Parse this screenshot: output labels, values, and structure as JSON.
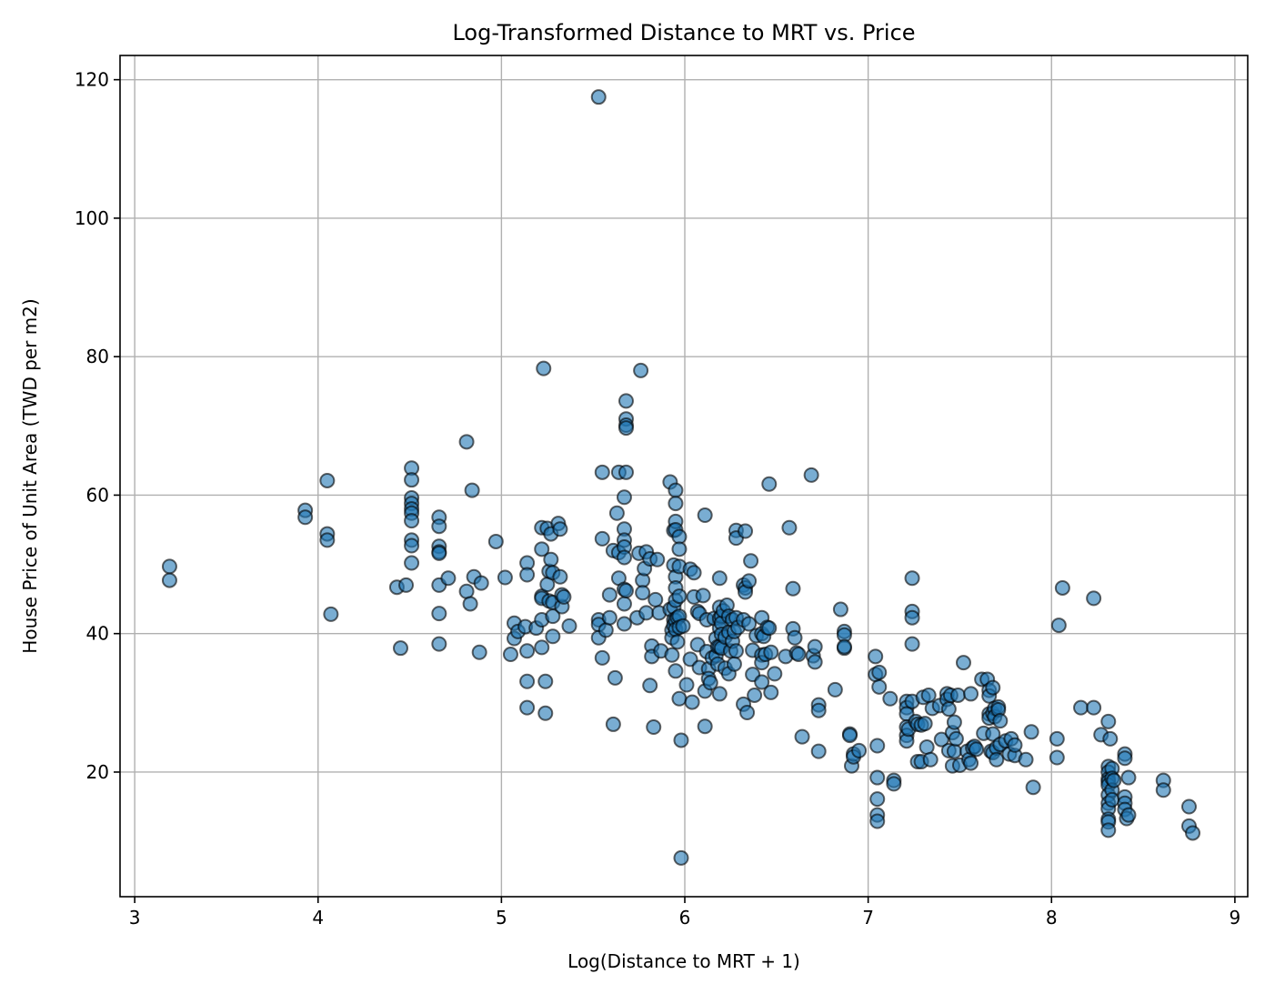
{
  "chart_data": {
    "type": "scatter",
    "title": "Log-Transformed Distance to MRT vs. Price",
    "xlabel": "Log(Distance to MRT + 1)",
    "ylabel": "House Price of Unit Area (TWD per m2)",
    "xlim": [
      2.92,
      9.07
    ],
    "ylim": [
      2.0,
      123.5
    ],
    "xticks": [
      3,
      4,
      5,
      6,
      7,
      8,
      9
    ],
    "yticks": [
      20,
      40,
      60,
      80,
      100,
      120
    ],
    "grid": true,
    "point_color": "#1f77b4",
    "points": [
      [
        3.19,
        49.7
      ],
      [
        3.19,
        47.7
      ],
      [
        3.93,
        57.8
      ],
      [
        3.93,
        56.8
      ],
      [
        4.05,
        62.1
      ],
      [
        4.05,
        54.4
      ],
      [
        4.05,
        53.5
      ],
      [
        4.07,
        42.8
      ],
      [
        4.43,
        46.7
      ],
      [
        4.45,
        37.9
      ],
      [
        4.48,
        47.0
      ],
      [
        4.51,
        63.9
      ],
      [
        4.51,
        62.2
      ],
      [
        4.51,
        59.6
      ],
      [
        4.51,
        58.8
      ],
      [
        4.51,
        58.0
      ],
      [
        4.51,
        57.4
      ],
      [
        4.51,
        56.3
      ],
      [
        4.51,
        53.5
      ],
      [
        4.51,
        52.7
      ],
      [
        4.51,
        50.2
      ],
      [
        4.66,
        56.8
      ],
      [
        4.66,
        55.5
      ],
      [
        4.66,
        52.6
      ],
      [
        4.66,
        51.8
      ],
      [
        4.66,
        51.6
      ],
      [
        4.66,
        47.0
      ],
      [
        4.66,
        42.9
      ],
      [
        4.66,
        38.5
      ],
      [
        4.71,
        48.0
      ],
      [
        4.81,
        67.7
      ],
      [
        4.81,
        46.1
      ],
      [
        4.83,
        44.3
      ],
      [
        4.84,
        60.7
      ],
      [
        4.85,
        48.2
      ],
      [
        4.88,
        37.3
      ],
      [
        4.89,
        47.3
      ],
      [
        4.97,
        53.3
      ],
      [
        5.02,
        48.1
      ],
      [
        5.05,
        37.0
      ],
      [
        5.07,
        41.5
      ],
      [
        5.07,
        39.3
      ],
      [
        5.09,
        40.3
      ],
      [
        5.13,
        41.0
      ],
      [
        5.14,
        50.2
      ],
      [
        5.14,
        48.5
      ],
      [
        5.14,
        37.5
      ],
      [
        5.14,
        33.1
      ],
      [
        5.14,
        29.3
      ],
      [
        5.19,
        40.8
      ],
      [
        5.22,
        55.3
      ],
      [
        5.22,
        52.2
      ],
      [
        5.22,
        45.4
      ],
      [
        5.22,
        45.1
      ],
      [
        5.22,
        42.0
      ],
      [
        5.22,
        38.0
      ],
      [
        5.23,
        78.3
      ],
      [
        5.24,
        33.1
      ],
      [
        5.24,
        28.5
      ],
      [
        5.25,
        55.2
      ],
      [
        5.25,
        47.1
      ],
      [
        5.26,
        49.0
      ],
      [
        5.26,
        44.7
      ],
      [
        5.27,
        54.4
      ],
      [
        5.27,
        50.7
      ],
      [
        5.28,
        48.8
      ],
      [
        5.28,
        44.5
      ],
      [
        5.28,
        42.5
      ],
      [
        5.28,
        39.6
      ],
      [
        5.31,
        55.9
      ],
      [
        5.32,
        55.1
      ],
      [
        5.32,
        48.2
      ],
      [
        5.33,
        43.9
      ],
      [
        5.33,
        45.6
      ],
      [
        5.34,
        45.3
      ],
      [
        5.37,
        41.1
      ],
      [
        5.53,
        117.5
      ],
      [
        5.53,
        42.0
      ],
      [
        5.53,
        41.3
      ],
      [
        5.53,
        39.4
      ],
      [
        5.55,
        63.3
      ],
      [
        5.55,
        53.7
      ],
      [
        5.55,
        36.5
      ],
      [
        5.57,
        40.5
      ],
      [
        5.59,
        45.6
      ],
      [
        5.59,
        42.3
      ],
      [
        5.61,
        52.0
      ],
      [
        5.61,
        26.9
      ],
      [
        5.62,
        33.6
      ],
      [
        5.63,
        57.4
      ],
      [
        5.64,
        63.3
      ],
      [
        5.64,
        48.0
      ],
      [
        5.64,
        51.7
      ],
      [
        5.67,
        59.7
      ],
      [
        5.67,
        55.1
      ],
      [
        5.67,
        53.5
      ],
      [
        5.67,
        52.5
      ],
      [
        5.67,
        51.0
      ],
      [
        5.67,
        46.4
      ],
      [
        5.67,
        44.3
      ],
      [
        5.67,
        41.4
      ],
      [
        5.68,
        73.6
      ],
      [
        5.68,
        71.0
      ],
      [
        5.68,
        70.1
      ],
      [
        5.68,
        69.7
      ],
      [
        5.68,
        63.3
      ],
      [
        5.68,
        46.2
      ],
      [
        5.74,
        42.3
      ],
      [
        5.75,
        51.6
      ],
      [
        5.76,
        78.0
      ],
      [
        5.77,
        47.7
      ],
      [
        5.77,
        45.9
      ],
      [
        5.78,
        49.4
      ],
      [
        5.79,
        51.8
      ],
      [
        5.79,
        43.0
      ],
      [
        5.81,
        50.8
      ],
      [
        5.81,
        32.5
      ],
      [
        5.82,
        38.2
      ],
      [
        5.82,
        36.7
      ],
      [
        5.83,
        26.5
      ],
      [
        5.84,
        44.9
      ],
      [
        5.85,
        50.7
      ],
      [
        5.86,
        43.0
      ],
      [
        5.87,
        37.5
      ],
      [
        5.92,
        61.9
      ],
      [
        5.92,
        43.5
      ],
      [
        5.93,
        40.5
      ],
      [
        5.93,
        36.9
      ],
      [
        5.93,
        39.4
      ],
      [
        5.94,
        54.9
      ],
      [
        5.94,
        49.9
      ],
      [
        5.94,
        43.8
      ],
      [
        5.94,
        42.0
      ],
      [
        5.94,
        41.2
      ],
      [
        5.95,
        60.7
      ],
      [
        5.95,
        58.8
      ],
      [
        5.95,
        56.2
      ],
      [
        5.95,
        55.0
      ],
      [
        5.95,
        48.2
      ],
      [
        5.95,
        46.6
      ],
      [
        5.95,
        44.8
      ],
      [
        5.95,
        41.9
      ],
      [
        5.95,
        40.6
      ],
      [
        5.95,
        34.6
      ],
      [
        5.96,
        42.3
      ],
      [
        5.96,
        38.8
      ],
      [
        5.97,
        54.0
      ],
      [
        5.97,
        52.2
      ],
      [
        5.97,
        49.7
      ],
      [
        5.97,
        45.4
      ],
      [
        5.97,
        42.5
      ],
      [
        5.97,
        40.9
      ],
      [
        5.97,
        30.6
      ],
      [
        5.98,
        7.6
      ],
      [
        5.98,
        24.6
      ],
      [
        5.99,
        41.1
      ],
      [
        6.01,
        32.6
      ],
      [
        6.03,
        49.3
      ],
      [
        6.03,
        36.3
      ],
      [
        6.04,
        30.1
      ],
      [
        6.05,
        48.8
      ],
      [
        6.05,
        45.3
      ],
      [
        6.07,
        43.2
      ],
      [
        6.07,
        38.4
      ],
      [
        6.08,
        42.9
      ],
      [
        6.08,
        35.1
      ],
      [
        6.1,
        45.5
      ],
      [
        6.11,
        57.1
      ],
      [
        6.11,
        31.7
      ],
      [
        6.11,
        26.6
      ],
      [
        6.12,
        42.0
      ],
      [
        6.12,
        37.4
      ],
      [
        6.13,
        34.9
      ],
      [
        6.13,
        33.5
      ],
      [
        6.14,
        32.9
      ],
      [
        6.15,
        36.5
      ],
      [
        6.16,
        42.2
      ],
      [
        6.17,
        39.3
      ],
      [
        6.17,
        36.8
      ],
      [
        6.18,
        38.1
      ],
      [
        6.18,
        35.6
      ],
      [
        6.19,
        48.0
      ],
      [
        6.19,
        43.8
      ],
      [
        6.19,
        42.2
      ],
      [
        6.19,
        40.8
      ],
      [
        6.19,
        38.1
      ],
      [
        6.19,
        31.3
      ],
      [
        6.2,
        42.5
      ],
      [
        6.2,
        41.5
      ],
      [
        6.2,
        39.9
      ],
      [
        6.2,
        37.9
      ],
      [
        6.21,
        43.3
      ],
      [
        6.22,
        39.5
      ],
      [
        6.22,
        35.0
      ],
      [
        6.23,
        44.1
      ],
      [
        6.24,
        42.5
      ],
      [
        6.24,
        40.2
      ],
      [
        6.24,
        34.2
      ],
      [
        6.25,
        37.5
      ],
      [
        6.26,
        42.0
      ],
      [
        6.26,
        38.9
      ],
      [
        6.27,
        40.3
      ],
      [
        6.27,
        35.6
      ],
      [
        6.28,
        54.9
      ],
      [
        6.28,
        53.8
      ],
      [
        6.28,
        42.3
      ],
      [
        6.28,
        37.5
      ],
      [
        6.29,
        40.9
      ],
      [
        6.32,
        47.0
      ],
      [
        6.32,
        42.0
      ],
      [
        6.32,
        29.8
      ],
      [
        6.33,
        46.6
      ],
      [
        6.33,
        46.0
      ],
      [
        6.33,
        54.8
      ],
      [
        6.34,
        28.6
      ],
      [
        6.35,
        47.6
      ],
      [
        6.35,
        41.4
      ],
      [
        6.36,
        50.5
      ],
      [
        6.37,
        37.6
      ],
      [
        6.37,
        34.1
      ],
      [
        6.38,
        31.1
      ],
      [
        6.39,
        39.7
      ],
      [
        6.42,
        42.3
      ],
      [
        6.42,
        40.0
      ],
      [
        6.42,
        36.9
      ],
      [
        6.42,
        35.8
      ],
      [
        6.42,
        33.0
      ],
      [
        6.43,
        39.6
      ],
      [
        6.44,
        37.0
      ],
      [
        6.45,
        40.9
      ],
      [
        6.46,
        61.6
      ],
      [
        6.46,
        40.8
      ],
      [
        6.47,
        37.3
      ],
      [
        6.47,
        31.5
      ],
      [
        6.49,
        34.2
      ],
      [
        6.55,
        36.7
      ],
      [
        6.57,
        55.3
      ],
      [
        6.59,
        46.5
      ],
      [
        6.59,
        40.7
      ],
      [
        6.6,
        39.4
      ],
      [
        6.61,
        37.2
      ],
      [
        6.62,
        37.0
      ],
      [
        6.64,
        25.1
      ],
      [
        6.69,
        62.9
      ],
      [
        6.7,
        36.8
      ],
      [
        6.71,
        38.1
      ],
      [
        6.71,
        35.9
      ],
      [
        6.73,
        29.7
      ],
      [
        6.73,
        28.9
      ],
      [
        6.73,
        23.0
      ],
      [
        6.82,
        31.9
      ],
      [
        6.85,
        43.5
      ],
      [
        6.87,
        40.3
      ],
      [
        6.87,
        39.8
      ],
      [
        6.87,
        37.9
      ],
      [
        6.87,
        38.1
      ],
      [
        6.9,
        25.5
      ],
      [
        6.9,
        25.3
      ],
      [
        6.91,
        20.9
      ],
      [
        6.92,
        22.6
      ],
      [
        6.92,
        22.2
      ],
      [
        6.95,
        23.1
      ],
      [
        7.04,
        36.7
      ],
      [
        7.04,
        34.1
      ],
      [
        7.05,
        23.8
      ],
      [
        7.05,
        19.2
      ],
      [
        7.05,
        16.1
      ],
      [
        7.05,
        13.8
      ],
      [
        7.05,
        12.9
      ],
      [
        7.06,
        34.4
      ],
      [
        7.06,
        32.3
      ],
      [
        7.12,
        30.6
      ],
      [
        7.14,
        18.8
      ],
      [
        7.14,
        18.3
      ],
      [
        7.21,
        30.2
      ],
      [
        7.21,
        29.3
      ],
      [
        7.21,
        28.4
      ],
      [
        7.21,
        26.5
      ],
      [
        7.21,
        25.3
      ],
      [
        7.21,
        24.5
      ],
      [
        7.22,
        26.2
      ],
      [
        7.24,
        48.0
      ],
      [
        7.24,
        43.2
      ],
      [
        7.24,
        42.3
      ],
      [
        7.24,
        38.5
      ],
      [
        7.24,
        30.2
      ],
      [
        7.26,
        27.3
      ],
      [
        7.27,
        26.9
      ],
      [
        7.27,
        21.5
      ],
      [
        7.29,
        26.8
      ],
      [
        7.29,
        21.5
      ],
      [
        7.3,
        30.8
      ],
      [
        7.31,
        27.0
      ],
      [
        7.32,
        23.6
      ],
      [
        7.33,
        31.1
      ],
      [
        7.34,
        21.8
      ],
      [
        7.35,
        29.2
      ],
      [
        7.39,
        29.6
      ],
      [
        7.4,
        24.7
      ],
      [
        7.43,
        31.3
      ],
      [
        7.43,
        30.5
      ],
      [
        7.44,
        29.1
      ],
      [
        7.44,
        23.1
      ],
      [
        7.45,
        31.1
      ],
      [
        7.46,
        25.7
      ],
      [
        7.46,
        20.9
      ],
      [
        7.47,
        27.2
      ],
      [
        7.47,
        23.0
      ],
      [
        7.48,
        24.8
      ],
      [
        7.49,
        31.1
      ],
      [
        7.5,
        21.0
      ],
      [
        7.52,
        35.8
      ],
      [
        7.54,
        23.0
      ],
      [
        7.55,
        21.8
      ],
      [
        7.56,
        31.3
      ],
      [
        7.56,
        21.3
      ],
      [
        7.57,
        23.5
      ],
      [
        7.58,
        23.7
      ],
      [
        7.59,
        23.3
      ],
      [
        7.62,
        33.4
      ],
      [
        7.63,
        25.6
      ],
      [
        7.65,
        33.4
      ],
      [
        7.66,
        31.8
      ],
      [
        7.66,
        31.0
      ],
      [
        7.66,
        28.4
      ],
      [
        7.66,
        27.8
      ],
      [
        7.67,
        23.0
      ],
      [
        7.68,
        32.2
      ],
      [
        7.68,
        28.5
      ],
      [
        7.68,
        25.5
      ],
      [
        7.68,
        22.8
      ],
      [
        7.69,
        29.2
      ],
      [
        7.69,
        28.0
      ],
      [
        7.7,
        23.5
      ],
      [
        7.7,
        21.8
      ],
      [
        7.71,
        29.4
      ],
      [
        7.71,
        29.0
      ],
      [
        7.72,
        27.4
      ],
      [
        7.72,
        24.0
      ],
      [
        7.75,
        24.5
      ],
      [
        7.77,
        22.6
      ],
      [
        7.78,
        24.8
      ],
      [
        7.8,
        22.4
      ],
      [
        7.8,
        23.9
      ],
      [
        7.86,
        21.8
      ],
      [
        7.89,
        25.8
      ],
      [
        7.9,
        17.8
      ],
      [
        8.03,
        24.8
      ],
      [
        8.03,
        22.1
      ],
      [
        8.04,
        41.2
      ],
      [
        8.06,
        46.6
      ],
      [
        8.16,
        29.3
      ],
      [
        8.23,
        29.3
      ],
      [
        8.23,
        45.1
      ],
      [
        8.27,
        25.4
      ],
      [
        8.31,
        27.3
      ],
      [
        8.31,
        20.8
      ],
      [
        8.31,
        20.0
      ],
      [
        8.31,
        19.0
      ],
      [
        8.31,
        18.6
      ],
      [
        8.31,
        18.1
      ],
      [
        8.31,
        16.7
      ],
      [
        8.31,
        15.5
      ],
      [
        8.31,
        14.7
      ],
      [
        8.31,
        13.2
      ],
      [
        8.31,
        12.8
      ],
      [
        8.31,
        11.6
      ],
      [
        8.32,
        24.8
      ],
      [
        8.33,
        20.5
      ],
      [
        8.33,
        19.1
      ],
      [
        8.33,
        17.4
      ],
      [
        8.33,
        16.0
      ],
      [
        8.34,
        18.8
      ],
      [
        8.4,
        22.6
      ],
      [
        8.4,
        22.0
      ],
      [
        8.4,
        16.4
      ],
      [
        8.4,
        15.5
      ],
      [
        8.4,
        14.6
      ],
      [
        8.41,
        13.3
      ],
      [
        8.42,
        19.2
      ],
      [
        8.42,
        13.8
      ],
      [
        8.61,
        18.8
      ],
      [
        8.61,
        17.4
      ],
      [
        8.75,
        15.0
      ],
      [
        8.75,
        12.2
      ],
      [
        8.77,
        11.2
      ]
    ]
  }
}
